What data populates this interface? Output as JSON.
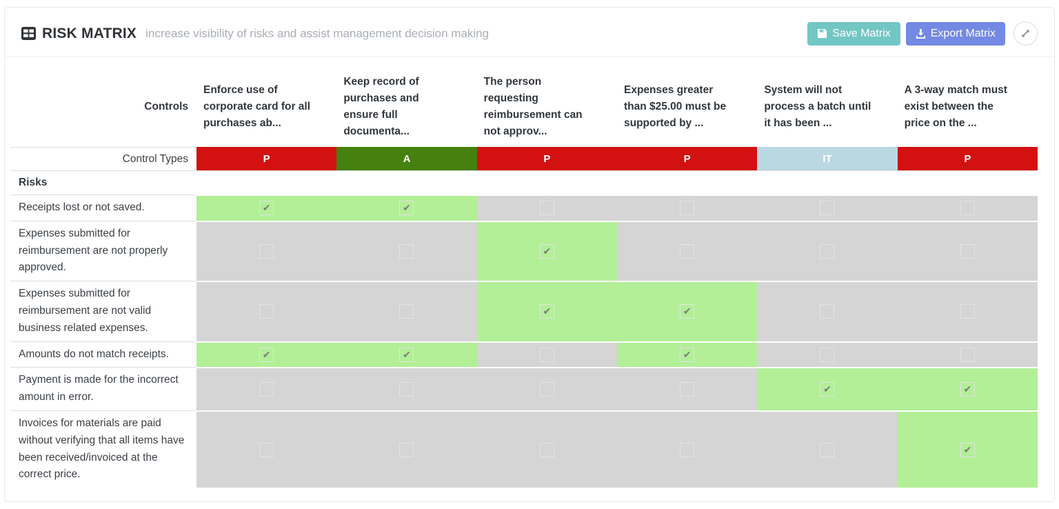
{
  "header": {
    "title": "RISK MATRIX",
    "subtitle": "increase visibility of risks and assist management decision making",
    "buttons": {
      "save": {
        "label": "Save Matrix",
        "color": "#72c6c4",
        "icon": "save-icon"
      },
      "export": {
        "label": "Export Matrix",
        "color": "#7389e3",
        "icon": "download-icon"
      },
      "expand": {
        "icon": "expand-arrows-icon"
      }
    }
  },
  "table": {
    "controls_header_label": "Controls",
    "control_types_label": "Control Types",
    "risks_section_label": "Risks",
    "columns": [
      {
        "title": "Enforce use of corporate card for all purchases ab...",
        "type": "P"
      },
      {
        "title": "Keep record of purchases and ensure full documenta...",
        "type": "A"
      },
      {
        "title": "The person requesting reimbursement can not approv...",
        "type": "P"
      },
      {
        "title": "Expenses greater than $25.00 must be supported by ...",
        "type": "P"
      },
      {
        "title": "System will not process a batch until it has been ...",
        "type": "IT"
      },
      {
        "title": "A 3-way match must exist between the price on the ...",
        "type": "P"
      }
    ],
    "type_colors": {
      "P": "#d21110",
      "A": "#46800e",
      "IT": "#b9d8e2"
    },
    "rows": [
      {
        "risk": "Receipts lost or not saved.",
        "checked": [
          true,
          true,
          false,
          false,
          false,
          false
        ]
      },
      {
        "risk": "Expenses submitted for reimbursement are not properly approved.",
        "checked": [
          false,
          false,
          true,
          false,
          false,
          false
        ]
      },
      {
        "risk": "Expenses submitted for reimbursement are not valid business related expenses.",
        "checked": [
          false,
          false,
          true,
          true,
          false,
          false
        ]
      },
      {
        "risk": "Amounts do not match receipts.",
        "checked": [
          true,
          true,
          false,
          true,
          false,
          false
        ]
      },
      {
        "risk": "Payment is made for the incorrect amount in error.",
        "checked": [
          false,
          false,
          false,
          false,
          true,
          true
        ]
      },
      {
        "risk": "Invoices for materials are paid without verifying that all items have been received/invoiced at the correct price.",
        "checked": [
          false,
          false,
          false,
          false,
          false,
          true
        ]
      }
    ],
    "cell_colors": {
      "checked_bg": "#b2ef97",
      "unchecked_bg": "#d5d5d5",
      "check_glyph": "✔"
    }
  }
}
